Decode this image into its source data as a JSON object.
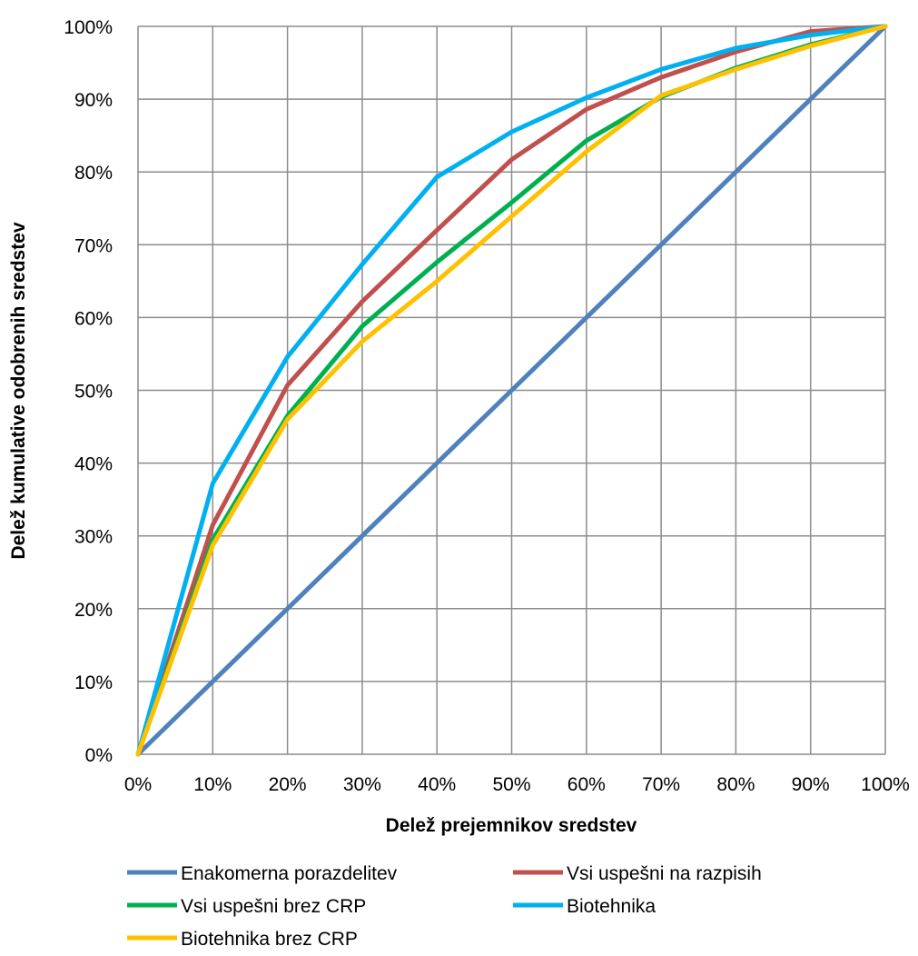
{
  "chart_data": {
    "type": "line",
    "xlabel": "Delež prejemnikov sredstev",
    "ylabel": "Delež kumulative odobrenih sredstev",
    "xlim": [
      0,
      100
    ],
    "ylim": [
      0,
      100
    ],
    "x_ticks": [
      "0%",
      "10%",
      "20%",
      "30%",
      "40%",
      "50%",
      "60%",
      "70%",
      "80%",
      "90%",
      "100%"
    ],
    "y_ticks": [
      "0%",
      "10%",
      "20%",
      "30%",
      "40%",
      "50%",
      "60%",
      "70%",
      "80%",
      "90%",
      "100%"
    ],
    "grid": true,
    "legend_position": "bottom",
    "x": [
      0,
      10,
      20,
      30,
      40,
      50,
      60,
      70,
      80,
      90,
      100
    ],
    "series": [
      {
        "name": "Enakomerna porazdelitev",
        "color": "#4F81BD",
        "values": [
          0,
          10,
          20,
          30,
          40,
          50,
          60,
          70,
          80,
          90,
          100
        ]
      },
      {
        "name": "Vsi uspešni na razpisih",
        "color": "#C0504D",
        "values": [
          0,
          31.5,
          50.7,
          62.2,
          72,
          81.7,
          88.6,
          93,
          96.5,
          99.3,
          100
        ]
      },
      {
        "name": "Vsi uspešni brez CRP",
        "color": "#00B050",
        "values": [
          0,
          29.5,
          46.5,
          58.8,
          67.6,
          75.8,
          84.3,
          90.3,
          94.3,
          97.5,
          100
        ]
      },
      {
        "name": "Biotehnika",
        "color": "#00B0F0",
        "values": [
          0,
          37.2,
          54.6,
          67.3,
          79.3,
          85.5,
          90.2,
          94.1,
          97,
          98.8,
          100
        ]
      },
      {
        "name": "Biotehnika brez CRP",
        "color": "#FFC000",
        "values": [
          0,
          28.7,
          46,
          56.7,
          65,
          73.9,
          82.8,
          90.5,
          94.1,
          97.3,
          100
        ]
      }
    ]
  }
}
